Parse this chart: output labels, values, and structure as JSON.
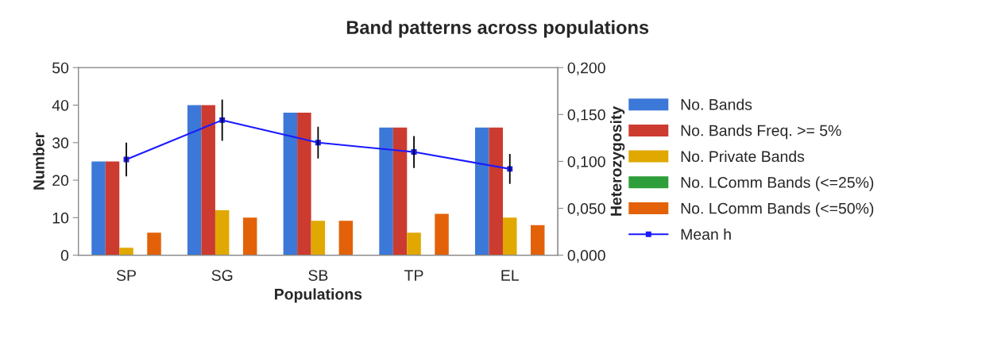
{
  "chart_data": {
    "type": "bar",
    "title": "Band patterns across populations",
    "xlabel": "Populations",
    "ylabel": "Number",
    "y2label": "Heterozygosity",
    "categories": [
      "SP",
      "SG",
      "SB",
      "TP",
      "EL"
    ],
    "series": [
      {
        "name": "No. Bands",
        "color": "#3c78d8",
        "values": [
          25,
          40,
          38,
          34,
          34
        ]
      },
      {
        "name": "No. Bands Freq. >= 5%",
        "color": "#cc3b2f",
        "values": [
          25,
          40,
          38,
          34,
          34
        ]
      },
      {
        "name": "No. Private Bands",
        "color": "#e0a800",
        "values": [
          2,
          12,
          9.2,
          6,
          10
        ]
      },
      {
        "name": "No. LComm Bands (<=25%)",
        "color": "#2e9e3a",
        "values": [
          0,
          0,
          0,
          0,
          0
        ]
      },
      {
        "name": "No. LComm Bands (<=50%)",
        "color": "#e36209",
        "values": [
          6,
          10,
          9.2,
          11,
          8
        ]
      },
      {
        "name": "Mean h",
        "type": "line",
        "axis": "y2",
        "color": "#1a1aff",
        "marker": "square",
        "values": [
          0.102,
          0.144,
          0.12,
          0.11,
          0.092
        ],
        "errors": [
          0.018,
          0.022,
          0.017,
          0.017,
          0.016
        ]
      }
    ],
    "ylim": [
      0,
      50
    ],
    "yticks": [
      0,
      10,
      20,
      30,
      40,
      50
    ],
    "y2lim": [
      0,
      0.2
    ],
    "y2ticks": [
      {
        "value": 0,
        "label": "0,000"
      },
      {
        "value": 0.05,
        "label": "0,050"
      },
      {
        "value": 0.1,
        "label": "0,100"
      },
      {
        "value": 0.15,
        "label": "0,150"
      },
      {
        "value": 0.2,
        "label": "0,200"
      }
    ],
    "legend": "right",
    "grid": false
  }
}
